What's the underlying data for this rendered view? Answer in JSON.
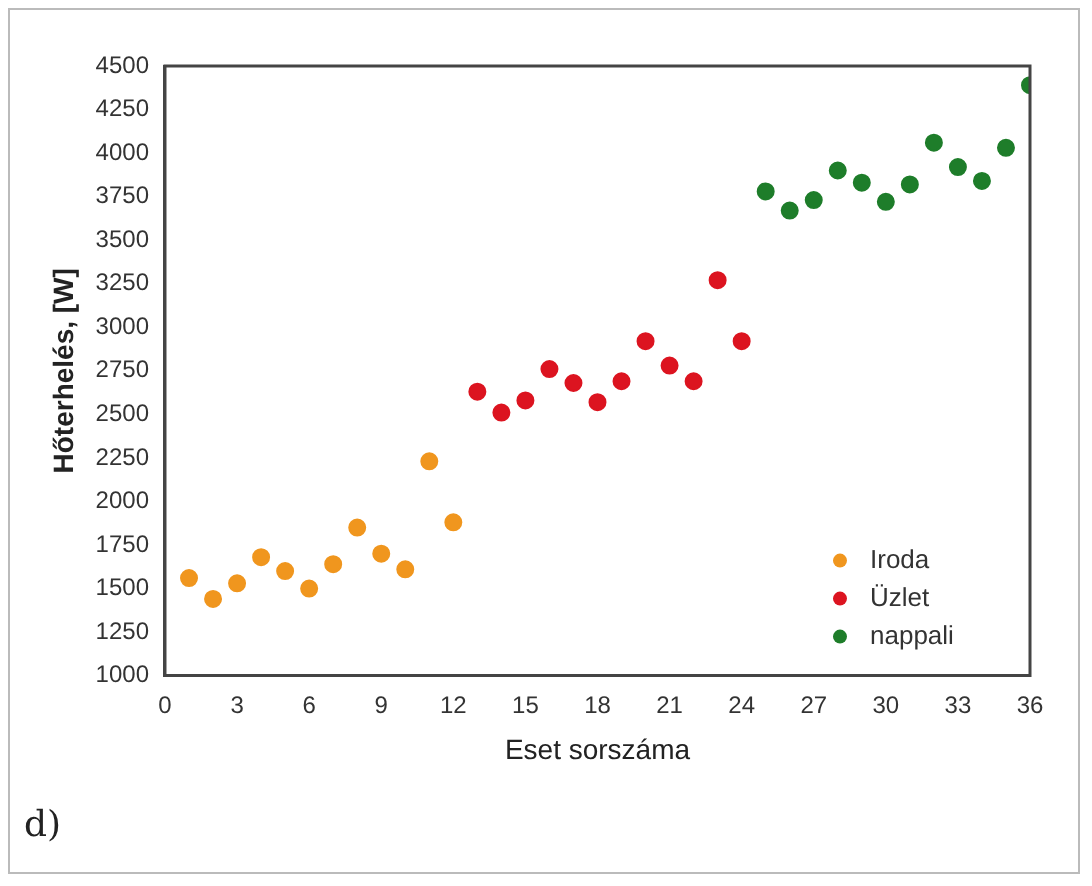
{
  "chart_data": {
    "type": "scatter",
    "xlabel": "Eset sorszáma",
    "ylabel": "Hőterhelés, [W]",
    "annotations": [
      "d)"
    ],
    "xlim": [
      0,
      36
    ],
    "xticks": [
      0,
      3,
      6,
      9,
      12,
      15,
      18,
      21,
      24,
      27,
      30,
      33,
      36
    ],
    "ylim": [
      1000,
      4500
    ],
    "yticks": [
      1000,
      1250,
      1500,
      1750,
      2000,
      2250,
      2500,
      2750,
      3000,
      3250,
      3500,
      3750,
      4000,
      4250,
      4500
    ],
    "grid": false,
    "legend": "bottom right",
    "marker": "circle",
    "series": [
      {
        "name": "Iroda",
        "color": "#f0961e",
        "x": [
          1,
          2,
          3,
          4,
          5,
          6,
          7,
          8,
          9,
          10,
          11,
          12
        ],
        "values": [
          1560,
          1440,
          1530,
          1680,
          1600,
          1500,
          1640,
          1850,
          1700,
          1610,
          2230,
          1880
        ]
      },
      {
        "name": "Üzlet",
        "color": "#dc1420",
        "x": [
          13,
          14,
          15,
          16,
          17,
          18,
          19,
          20,
          21,
          22,
          23,
          24
        ],
        "values": [
          2630,
          2510,
          2580,
          2760,
          2680,
          2570,
          2690,
          2920,
          2780,
          2690,
          3270,
          2920
        ]
      },
      {
        "name": "nappali",
        "color": "#1e7d2a",
        "x": [
          25,
          26,
          27,
          28,
          29,
          30,
          31,
          32,
          33,
          34,
          35,
          36
        ],
        "values": [
          3780,
          3670,
          3730,
          3900,
          3830,
          3720,
          3820,
          4060,
          3920,
          3840,
          4030,
          4390
        ]
      }
    ]
  }
}
